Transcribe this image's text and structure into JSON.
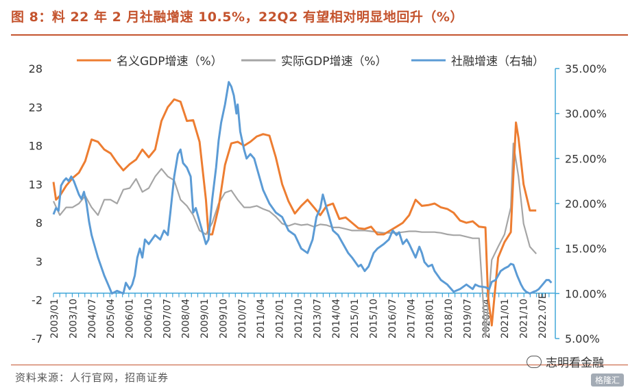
{
  "title": "图 8：料 22 年 2 月社融增速 10.5%，22Q2 有望相对明显地回升（%）",
  "source": "资料来源：人行官网，招商证券",
  "watermark": {
    "text": "志明看金融",
    "logo": "格隆汇"
  },
  "colors": {
    "title": "#c4532d",
    "nominal": "#ed7d31",
    "real": "#a5a5a5",
    "tsf": "#5b9bd5",
    "axis_right": "#41a7d9"
  },
  "chart_data": {
    "type": "line",
    "legend": {
      "position": "top",
      "entries": [
        "名义GDP增速（%）",
        "实际GDP增速（%）",
        "社融增速（右轴）"
      ]
    },
    "y_left": {
      "range": [
        -7,
        28
      ],
      "ticks": [
        "28",
        "23",
        "18",
        "13",
        "8",
        "3",
        "-2",
        "-7"
      ]
    },
    "y_right": {
      "range": [
        5,
        35
      ],
      "ticks": [
        "35.00%",
        "30.00%",
        "25.00%",
        "20.00%",
        "15.00%",
        "10.00%",
        "5.00%"
      ]
    },
    "x_axis": {
      "ticks": [
        "2003/01",
        "2003/10",
        "2004/07",
        "2005/04",
        "2006/01",
        "2006/10",
        "2007/07",
        "2008/04",
        "2009/01",
        "2009/10",
        "2010/07",
        "2011/04",
        "2012/01",
        "2012/10",
        "2013/07",
        "2014/04",
        "2015/01",
        "2015/10",
        "2016/07",
        "2017/04",
        "2018/01",
        "2018/10",
        "2019/07",
        "2020/04",
        "2021/01",
        "2021/10",
        "2022.07E"
      ]
    },
    "series": [
      {
        "name": "名义GDP增速（%）",
        "axis": "left",
        "points": [
          [
            2003.0,
            13.3
          ],
          [
            2003.1,
            11.0
          ],
          [
            2003.25,
            11.5
          ],
          [
            2003.5,
            12.8
          ],
          [
            2003.75,
            13.8
          ],
          [
            2004.0,
            14.5
          ],
          [
            2004.25,
            16.0
          ],
          [
            2004.5,
            18.8
          ],
          [
            2004.75,
            18.5
          ],
          [
            2005.0,
            17.5
          ],
          [
            2005.25,
            17.0
          ],
          [
            2005.5,
            15.8
          ],
          [
            2005.75,
            14.8
          ],
          [
            2006.0,
            15.6
          ],
          [
            2006.25,
            16.2
          ],
          [
            2006.5,
            17.5
          ],
          [
            2006.75,
            16.5
          ],
          [
            2007.0,
            17.5
          ],
          [
            2007.25,
            21.2
          ],
          [
            2007.5,
            23.0
          ],
          [
            2007.75,
            24.0
          ],
          [
            2008.0,
            23.7
          ],
          [
            2008.25,
            21.2
          ],
          [
            2008.5,
            21.3
          ],
          [
            2008.75,
            18.5
          ],
          [
            2009.0,
            11.0
          ],
          [
            2009.1,
            6.5
          ],
          [
            2009.25,
            6.5
          ],
          [
            2009.5,
            10.0
          ],
          [
            2009.75,
            15.5
          ],
          [
            2010.0,
            18.3
          ],
          [
            2010.25,
            18.5
          ],
          [
            2010.5,
            18.0
          ],
          [
            2010.75,
            18.5
          ],
          [
            2011.0,
            19.2
          ],
          [
            2011.25,
            19.5
          ],
          [
            2011.5,
            19.3
          ],
          [
            2011.75,
            16.5
          ],
          [
            2012.0,
            13.0
          ],
          [
            2012.25,
            10.8
          ],
          [
            2012.5,
            9.2
          ],
          [
            2012.75,
            10.2
          ],
          [
            2013.0,
            11.0
          ],
          [
            2013.25,
            10.0
          ],
          [
            2013.5,
            9.0
          ],
          [
            2013.75,
            10.2
          ],
          [
            2014.0,
            10.5
          ],
          [
            2014.25,
            8.5
          ],
          [
            2014.5,
            8.7
          ],
          [
            2014.75,
            8.0
          ],
          [
            2015.0,
            7.3
          ],
          [
            2015.25,
            7.2
          ],
          [
            2015.5,
            7.5
          ],
          [
            2015.75,
            6.5
          ],
          [
            2016.0,
            6.5
          ],
          [
            2016.25,
            7.0
          ],
          [
            2016.5,
            7.5
          ],
          [
            2016.75,
            8.0
          ],
          [
            2017.0,
            9.0
          ],
          [
            2017.25,
            11.0
          ],
          [
            2017.5,
            10.2
          ],
          [
            2017.75,
            10.3
          ],
          [
            2018.0,
            10.5
          ],
          [
            2018.25,
            10.0
          ],
          [
            2018.5,
            9.8
          ],
          [
            2018.75,
            9.3
          ],
          [
            2019.0,
            8.3
          ],
          [
            2019.25,
            8.0
          ],
          [
            2019.5,
            8.2
          ],
          [
            2019.75,
            7.5
          ],
          [
            2020.0,
            7.4
          ],
          [
            2020.1,
            -1.5
          ],
          [
            2020.25,
            -5.3
          ],
          [
            2020.5,
            3.5
          ],
          [
            2020.75,
            5.5
          ],
          [
            2021.0,
            6.8
          ],
          [
            2021.1,
            14.0
          ],
          [
            2021.2,
            21.0
          ],
          [
            2021.3,
            19.0
          ],
          [
            2021.5,
            13.0
          ],
          [
            2021.75,
            9.6
          ],
          [
            2022.0,
            9.6
          ]
        ]
      },
      {
        "name": "实际GDP增速（%）",
        "axis": "left",
        "points": [
          [
            2003.0,
            10.8
          ],
          [
            2003.25,
            9.0
          ],
          [
            2003.5,
            10.0
          ],
          [
            2003.75,
            10.0
          ],
          [
            2004.0,
            10.5
          ],
          [
            2004.25,
            11.5
          ],
          [
            2004.5,
            10.0
          ],
          [
            2004.75,
            9.0
          ],
          [
            2005.0,
            11.0
          ],
          [
            2005.25,
            11.0
          ],
          [
            2005.5,
            10.5
          ],
          [
            2005.75,
            12.3
          ],
          [
            2006.0,
            12.5
          ],
          [
            2006.25,
            13.7
          ],
          [
            2006.5,
            12.0
          ],
          [
            2006.75,
            12.5
          ],
          [
            2007.0,
            14.0
          ],
          [
            2007.25,
            15.0
          ],
          [
            2007.5,
            14.0
          ],
          [
            2007.75,
            13.5
          ],
          [
            2008.0,
            11.0
          ],
          [
            2008.25,
            10.2
          ],
          [
            2008.5,
            9.0
          ],
          [
            2008.75,
            7.0
          ],
          [
            2009.0,
            6.5
          ],
          [
            2009.25,
            8.0
          ],
          [
            2009.5,
            10.5
          ],
          [
            2009.75,
            11.9
          ],
          [
            2010.0,
            12.2
          ],
          [
            2010.25,
            11.0
          ],
          [
            2010.5,
            10.0
          ],
          [
            2010.75,
            10.0
          ],
          [
            2011.0,
            10.2
          ],
          [
            2011.25,
            9.8
          ],
          [
            2011.5,
            9.5
          ],
          [
            2011.75,
            8.8
          ],
          [
            2012.0,
            7.9
          ],
          [
            2012.25,
            7.6
          ],
          [
            2012.5,
            7.9
          ],
          [
            2012.75,
            7.7
          ],
          [
            2013.0,
            7.8
          ],
          [
            2013.25,
            7.5
          ],
          [
            2013.5,
            7.8
          ],
          [
            2013.75,
            7.7
          ],
          [
            2014.0,
            7.4
          ],
          [
            2014.25,
            7.4
          ],
          [
            2014.5,
            7.2
          ],
          [
            2014.75,
            7.0
          ],
          [
            2015.0,
            7.0
          ],
          [
            2015.25,
            7.0
          ],
          [
            2015.5,
            6.9
          ],
          [
            2015.75,
            6.8
          ],
          [
            2016.0,
            6.7
          ],
          [
            2016.5,
            6.7
          ],
          [
            2016.75,
            6.8
          ],
          [
            2017.0,
            6.9
          ],
          [
            2017.25,
            6.9
          ],
          [
            2017.5,
            6.8
          ],
          [
            2017.75,
            6.8
          ],
          [
            2018.0,
            6.8
          ],
          [
            2018.25,
            6.7
          ],
          [
            2018.5,
            6.5
          ],
          [
            2018.75,
            6.4
          ],
          [
            2019.0,
            6.4
          ],
          [
            2019.25,
            6.2
          ],
          [
            2019.5,
            6.0
          ],
          [
            2019.75,
            6.0
          ],
          [
            2020.0,
            -6.8
          ],
          [
            2020.25,
            3.2
          ],
          [
            2020.5,
            4.9
          ],
          [
            2020.75,
            6.5
          ],
          [
            2021.0,
            10.0
          ],
          [
            2021.1,
            18.3
          ],
          [
            2021.3,
            14.0
          ],
          [
            2021.5,
            7.9
          ],
          [
            2021.75,
            4.9
          ],
          [
            2022.0,
            4.0
          ]
        ]
      },
      {
        "name": "社融增速（右轴）",
        "axis": "right",
        "points": [
          [
            2003.0,
            18.8
          ],
          [
            2003.1,
            19.5
          ],
          [
            2003.2,
            19.2
          ],
          [
            2003.3,
            22.0
          ],
          [
            2003.4,
            22.5
          ],
          [
            2003.5,
            22.8
          ],
          [
            2003.6,
            22.5
          ],
          [
            2003.7,
            23.0
          ],
          [
            2003.8,
            22.5
          ],
          [
            2004.0,
            21.0
          ],
          [
            2004.1,
            20.5
          ],
          [
            2004.2,
            21.3
          ],
          [
            2004.3,
            20.0
          ],
          [
            2004.4,
            18.0
          ],
          [
            2004.5,
            16.5
          ],
          [
            2004.6,
            15.5
          ],
          [
            2004.75,
            14.0
          ],
          [
            2005.0,
            12.0
          ],
          [
            2005.15,
            11.0
          ],
          [
            2005.3,
            10.0
          ],
          [
            2005.5,
            10.3
          ],
          [
            2005.75,
            10.0
          ],
          [
            2005.85,
            11.2
          ],
          [
            2006.0,
            10.5
          ],
          [
            2006.1,
            11.0
          ],
          [
            2006.2,
            12.0
          ],
          [
            2006.3,
            14.0
          ],
          [
            2006.4,
            15.0
          ],
          [
            2006.5,
            14.0
          ],
          [
            2006.6,
            16.0
          ],
          [
            2006.75,
            15.5
          ],
          [
            2007.0,
            16.5
          ],
          [
            2007.2,
            16.0
          ],
          [
            2007.35,
            17.0
          ],
          [
            2007.5,
            16.5
          ],
          [
            2007.6,
            19.0
          ],
          [
            2007.75,
            23.0
          ],
          [
            2007.9,
            25.5
          ],
          [
            2008.0,
            26.0
          ],
          [
            2008.1,
            24.5
          ],
          [
            2008.25,
            24.0
          ],
          [
            2008.4,
            23.0
          ],
          [
            2008.5,
            19.0
          ],
          [
            2008.6,
            19.5
          ],
          [
            2008.75,
            18.0
          ],
          [
            2008.9,
            16.5
          ],
          [
            2009.0,
            15.5
          ],
          [
            2009.1,
            16.0
          ],
          [
            2009.25,
            20.5
          ],
          [
            2009.4,
            24.0
          ],
          [
            2009.5,
            27.0
          ],
          [
            2009.6,
            29.0
          ],
          [
            2009.75,
            31.0
          ],
          [
            2009.9,
            33.5
          ],
          [
            2010.0,
            33.0
          ],
          [
            2010.1,
            32.0
          ],
          [
            2010.2,
            30.0
          ],
          [
            2010.25,
            31.0
          ],
          [
            2010.35,
            28.0
          ],
          [
            2010.5,
            26.0
          ],
          [
            2010.6,
            25.0
          ],
          [
            2010.75,
            25.5
          ],
          [
            2010.9,
            25.0
          ],
          [
            2011.0,
            24.0
          ],
          [
            2011.25,
            21.5
          ],
          [
            2011.5,
            20.0
          ],
          [
            2011.75,
            19.0
          ],
          [
            2012.0,
            18.5
          ],
          [
            2012.25,
            17.0
          ],
          [
            2012.5,
            16.5
          ],
          [
            2012.75,
            15.0
          ],
          [
            2013.0,
            14.5
          ],
          [
            2013.2,
            16.0
          ],
          [
            2013.35,
            18.5
          ],
          [
            2013.5,
            19.5
          ],
          [
            2013.6,
            21.0
          ],
          [
            2013.75,
            19.5
          ],
          [
            2013.85,
            18.5
          ],
          [
            2014.0,
            17.0
          ],
          [
            2014.2,
            16.5
          ],
          [
            2014.4,
            15.5
          ],
          [
            2014.6,
            14.5
          ],
          [
            2014.75,
            14.0
          ],
          [
            2015.0,
            13.0
          ],
          [
            2015.1,
            13.2
          ],
          [
            2015.25,
            12.5
          ],
          [
            2015.4,
            13.0
          ],
          [
            2015.6,
            14.5
          ],
          [
            2015.75,
            15.0
          ],
          [
            2016.0,
            15.5
          ],
          [
            2016.2,
            16.0
          ],
          [
            2016.35,
            17.0
          ],
          [
            2016.5,
            16.5
          ],
          [
            2016.6,
            16.8
          ],
          [
            2016.75,
            15.5
          ],
          [
            2016.9,
            16.0
          ],
          [
            2017.0,
            15.5
          ],
          [
            2017.25,
            14.0
          ],
          [
            2017.4,
            15.2
          ],
          [
            2017.5,
            14.5
          ],
          [
            2017.6,
            13.5
          ],
          [
            2017.75,
            13.0
          ],
          [
            2017.9,
            13.2
          ],
          [
            2018.0,
            12.5
          ],
          [
            2018.25,
            11.5
          ],
          [
            2018.5,
            11.0
          ],
          [
            2018.75,
            10.2
          ],
          [
            2019.0,
            10.5
          ],
          [
            2019.25,
            11.0
          ],
          [
            2019.5,
            10.5
          ],
          [
            2019.6,
            11.0
          ],
          [
            2019.75,
            10.8
          ],
          [
            2020.0,
            10.7
          ],
          [
            2020.15,
            10.5
          ],
          [
            2020.25,
            11.3
          ],
          [
            2020.4,
            11.5
          ],
          [
            2020.5,
            12.0
          ],
          [
            2020.6,
            12.5
          ],
          [
            2020.75,
            12.8
          ],
          [
            2020.9,
            13.0
          ],
          [
            2021.0,
            13.3
          ],
          [
            2021.1,
            13.2
          ],
          [
            2021.25,
            12.0
          ],
          [
            2021.4,
            11.0
          ],
          [
            2021.5,
            10.5
          ],
          [
            2021.6,
            10.2
          ],
          [
            2021.75,
            10.0
          ],
          [
            2021.9,
            10.2
          ],
          [
            2022.0,
            10.3
          ],
          [
            2022.1,
            10.5
          ],
          [
            2022.25,
            11.0
          ],
          [
            2022.4,
            11.5
          ],
          [
            2022.5,
            11.5
          ],
          [
            2022.6,
            11.2
          ]
        ]
      }
    ]
  }
}
